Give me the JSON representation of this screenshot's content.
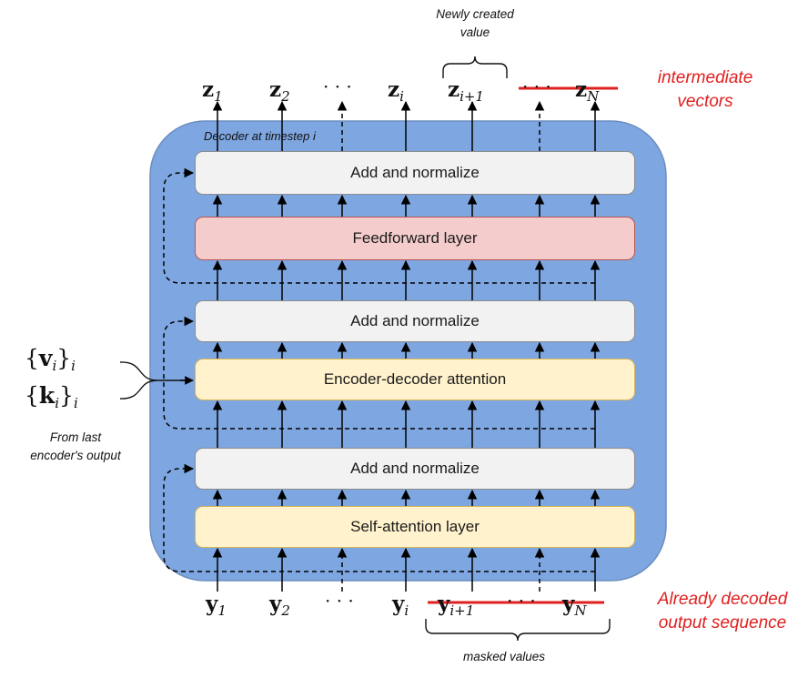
{
  "decoder": {
    "caption": "Decoder at timestep i"
  },
  "layers": {
    "norm_top": "Add and normalize",
    "feedforward": "Feedforward layer",
    "norm_mid": "Add and normalize",
    "enc_dec_attention": "Encoder-decoder attention",
    "norm_bottom": "Add and normalize",
    "self_attention": "Self-attention layer"
  },
  "outputs": {
    "z1": "z",
    "z1_sub": "1",
    "z2": "z",
    "z2_sub": "2",
    "dots": "· · ·",
    "zi": "z",
    "zi_sub": "i",
    "zi1": "z",
    "zi1_sub": "i+1",
    "dots2": "· · ·",
    "zN": "z",
    "zN_sub": "N"
  },
  "inputs": {
    "y1": "y",
    "y1_sub": "1",
    "y2": "y",
    "y2_sub": "2",
    "dots": "· · ·",
    "yi": "y",
    "yi_sub": "i",
    "yi1": "y",
    "yi1_sub": "i+1",
    "dots2": "· · ·",
    "yN": "y",
    "yN_sub": "N"
  },
  "encoder_inputs": {
    "v_open": "{",
    "v": "v",
    "v_sub": "i",
    "v_close": "}",
    "v_outer": "i",
    "k_open": "{",
    "k": "k",
    "k_sub": "i",
    "k_close": "}",
    "k_outer": "i",
    "note_line1": "From last",
    "note_line2": "encoder's output"
  },
  "annotations": {
    "newly_line1": "Newly created",
    "newly_line2": "value",
    "intermediate_line1": "intermediate",
    "intermediate_line2": "vectors",
    "decoded_line1": "Already decoded",
    "decoded_line2": "output sequence",
    "masked": "masked values"
  },
  "colors": {
    "decoder_fill": "#7ea6e0",
    "decoder_stroke": "#6c8ebf",
    "norm_fill": "#f2f2f2",
    "ff_fill": "#f5cccc",
    "attention_fill": "#fff2cc",
    "strike": "#e02020"
  }
}
